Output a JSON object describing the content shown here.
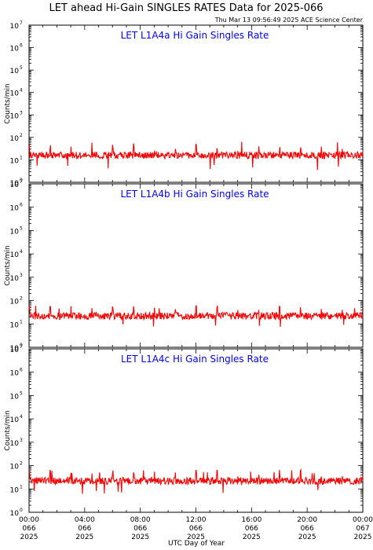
{
  "title": "LET ahead Hi-Gain SINGLES RATES Data for 2025-066",
  "timestamp": "Thu Mar 13 09:56:49 2025 ACE Science Center",
  "colors": {
    "panel_title": "#0000ff",
    "series": "#ff0000",
    "axes": "#000000"
  },
  "chart_data": [
    {
      "type": "line",
      "title": "LET L1A4a Hi Gain Singles Rate",
      "ylabel": "Counts/min",
      "yscale": "log",
      "ylim": [
        1,
        10000000
      ],
      "xlim_hours": [
        0,
        24
      ],
      "grid": false,
      "series": [
        {
          "values_summary": {
            "baseline": 16,
            "min": 3,
            "max": 70,
            "spike_interval_hours": 1.5
          }
        }
      ]
    },
    {
      "type": "line",
      "title": "LET L1A4b Hi Gain Singles Rate",
      "ylabel": "Counts/min",
      "yscale": "log",
      "ylim": [
        1,
        10000000
      ],
      "xlim_hours": [
        0,
        24
      ],
      "grid": false,
      "series": [
        {
          "values_summary": {
            "baseline": 22,
            "min": 7,
            "max": 60,
            "spike_interval_hours": 1.5
          }
        }
      ]
    },
    {
      "type": "line",
      "title": "LET L1A4c Hi Gain Singles Rate",
      "ylabel": "Counts/min",
      "yscale": "log",
      "ylim": [
        1,
        10000000
      ],
      "xlim_hours": [
        0,
        24
      ],
      "grid": false,
      "series": [
        {
          "values_summary": {
            "baseline": 22,
            "min": 6,
            "max": 65,
            "spike_interval_hours": 1.5
          }
        }
      ]
    }
  ],
  "ytick_labels": [
    {
      "base": "10",
      "exp": "0"
    },
    {
      "base": "10",
      "exp": "1"
    },
    {
      "base": "10",
      "exp": "2"
    },
    {
      "base": "10",
      "exp": "3"
    },
    {
      "base": "10",
      "exp": "4"
    },
    {
      "base": "10",
      "exp": "5"
    },
    {
      "base": "10",
      "exp": "6"
    },
    {
      "base": "10",
      "exp": "7"
    }
  ],
  "xtick_labels": [
    {
      "time": "00:00",
      "doy": "066",
      "year": "2025"
    },
    {
      "time": "04:00",
      "doy": "066",
      "year": "2025"
    },
    {
      "time": "08:00",
      "doy": "066",
      "year": "2025"
    },
    {
      "time": "12:00",
      "doy": "066",
      "year": "2025"
    },
    {
      "time": "16:00",
      "doy": "066",
      "year": "2025"
    },
    {
      "time": "20:00",
      "doy": "066",
      "year": "2025"
    },
    {
      "time": "00:00",
      "doy": "067",
      "year": "2025"
    }
  ],
  "xlabel": "UTC Day of Year"
}
